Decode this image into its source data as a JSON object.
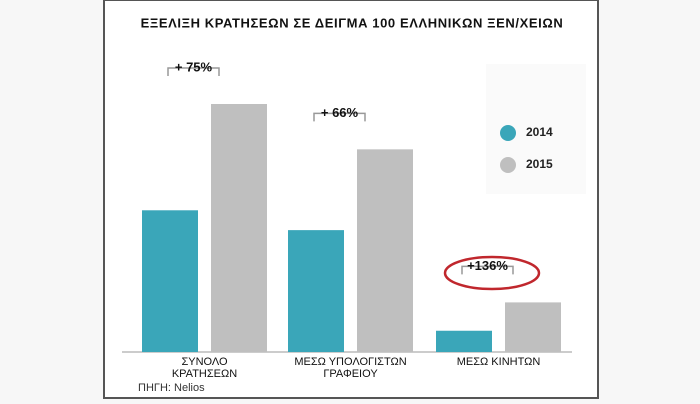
{
  "chart_data": {
    "type": "bar",
    "title": "ΕΞΕΛΙΞΗ ΚΡΑΤΗΣΕΩΝ ΣΕ ΔΕΙΓΜΑ 100 ΕΛΛΗΝΙΚΩΝ ΞΕΝ/ΧΕΙΩΝ",
    "categories": [
      "ΣΥΝΟΛΟ ΚΡΑΤΗΣΕΩΝ",
      "ΜΕΣΩ ΥΠΟΛΟΓΙΣΤΩΝ ΓΡΑΦΕΙΟΥ",
      "ΜΕΣΩ ΚΙΝΗΤΩΝ"
    ],
    "series": [
      {
        "name": "2014",
        "color": "#3aa6b9",
        "values": [
          100,
          86,
          15
        ]
      },
      {
        "name": "2015",
        "color": "#bfbfbf",
        "values": [
          175,
          143,
          35
        ]
      }
    ],
    "annotations": [
      "+ 75%",
      "+ 66%",
      "+136%"
    ],
    "source": "ΠΗΓΗ: Nelios",
    "legend": "right"
  }
}
